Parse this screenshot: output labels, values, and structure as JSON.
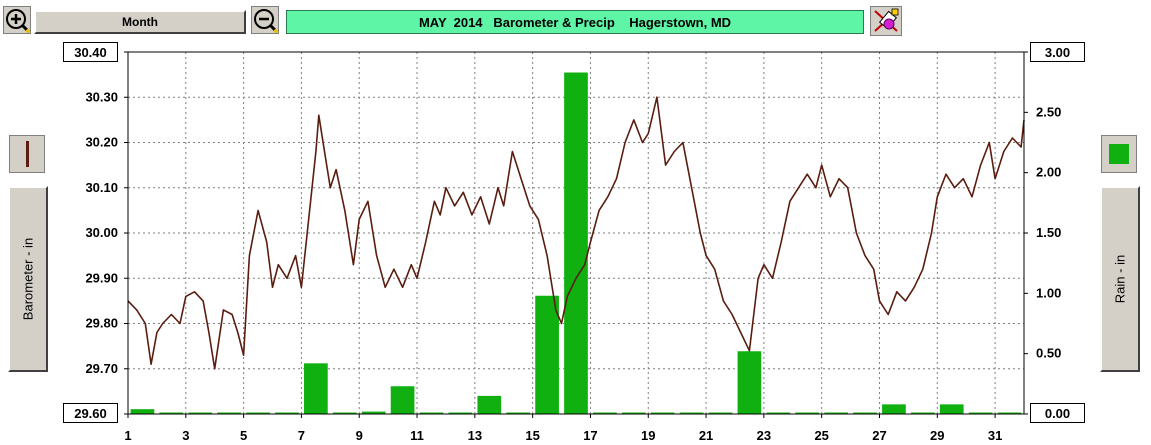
{
  "toolbar": {
    "period_label": "Month",
    "title": "MAY  2014   Barometer & Precip    Hagerstown, MD"
  },
  "icons": {
    "zoom_in": "zoom-in-icon",
    "zoom_out": "zoom-out-icon",
    "tools": "tools-icon"
  },
  "axes": {
    "left_label": "Barometer - in",
    "right_label": "Rain - in",
    "left_top": "30.40",
    "left_bottom": "29.60",
    "right_top": "3.00",
    "right_bottom": "0.00"
  },
  "colors": {
    "barometer_line": "#5a1d10",
    "rain_bars": "#10b010",
    "grid": "#808080"
  },
  "chart_data": {
    "type": "line",
    "title": "MAY  2014   Barometer & Precip    Hagerstown, MD",
    "xlabel": "",
    "xlim": [
      1,
      32
    ],
    "x_ticks": [
      "1",
      "3",
      "5",
      "7",
      "9",
      "11",
      "13",
      "15",
      "17",
      "19",
      "21",
      "23",
      "25",
      "27",
      "29",
      "31"
    ],
    "left_axis": {
      "label": "Barometer - in",
      "ylim": [
        29.6,
        30.4
      ],
      "ticks": [
        "30.40",
        "30.30",
        "30.20",
        "30.10",
        "30.00",
        "29.90",
        "29.80",
        "29.70",
        "29.60"
      ]
    },
    "right_axis": {
      "label": "Rain - in",
      "ylim": [
        0,
        3.0
      ],
      "ticks": [
        "3.00",
        "2.50",
        "2.00",
        "1.50",
        "1.00",
        "0.50",
        "0.00"
      ]
    },
    "grid": true,
    "series": [
      {
        "name": "Barometer - in",
        "kind": "line",
        "x": [
          1.0,
          1.3,
          1.6,
          1.8,
          2.0,
          2.2,
          2.5,
          2.8,
          3.0,
          3.3,
          3.6,
          3.8,
          4.0,
          4.3,
          4.6,
          4.8,
          5.0,
          5.2,
          5.5,
          5.8,
          6.0,
          6.2,
          6.5,
          6.8,
          7.0,
          7.2,
          7.5,
          7.6,
          7.8,
          8.0,
          8.2,
          8.5,
          8.8,
          9.0,
          9.3,
          9.6,
          9.9,
          10.2,
          10.5,
          10.8,
          11.0,
          11.3,
          11.6,
          11.8,
          12.0,
          12.3,
          12.6,
          12.9,
          13.2,
          13.5,
          13.8,
          14.0,
          14.3,
          14.6,
          14.9,
          15.2,
          15.5,
          15.8,
          16.0,
          16.2,
          16.5,
          16.8,
          17.0,
          17.3,
          17.6,
          17.9,
          18.2,
          18.5,
          18.8,
          19.0,
          19.3,
          19.6,
          19.9,
          20.2,
          20.5,
          20.8,
          21.0,
          21.3,
          21.6,
          21.9,
          22.2,
          22.5,
          22.8,
          23.0,
          23.3,
          23.6,
          23.9,
          24.2,
          24.5,
          24.8,
          25.0,
          25.3,
          25.6,
          25.9,
          26.2,
          26.5,
          26.8,
          27.0,
          27.3,
          27.6,
          27.9,
          28.2,
          28.5,
          28.8,
          29.0,
          29.3,
          29.6,
          29.9,
          30.2,
          30.5,
          30.8,
          31.0,
          31.3,
          31.6,
          31.9,
          32.0
        ],
        "y": [
          29.85,
          29.83,
          29.8,
          29.71,
          29.78,
          29.8,
          29.82,
          29.8,
          29.86,
          29.87,
          29.85,
          29.78,
          29.7,
          29.83,
          29.82,
          29.78,
          29.73,
          29.95,
          30.05,
          29.98,
          29.88,
          29.93,
          29.9,
          29.95,
          29.88,
          30.0,
          30.18,
          30.26,
          30.18,
          30.1,
          30.14,
          30.05,
          29.93,
          30.03,
          30.07,
          29.95,
          29.88,
          29.92,
          29.88,
          29.93,
          29.9,
          29.98,
          30.07,
          30.04,
          30.1,
          30.06,
          30.09,
          30.04,
          30.08,
          30.02,
          30.1,
          30.06,
          30.18,
          30.12,
          30.06,
          30.03,
          29.95,
          29.83,
          29.8,
          29.86,
          29.9,
          29.93,
          29.98,
          30.05,
          30.08,
          30.12,
          30.2,
          30.25,
          30.2,
          30.22,
          30.3,
          30.15,
          30.18,
          30.2,
          30.1,
          30.0,
          29.95,
          29.92,
          29.85,
          29.82,
          29.78,
          29.74,
          29.9,
          29.93,
          29.9,
          29.98,
          30.07,
          30.1,
          30.13,
          30.1,
          30.15,
          30.08,
          30.12,
          30.1,
          30.0,
          29.95,
          29.92,
          29.85,
          29.82,
          29.87,
          29.85,
          29.88,
          29.92,
          30.0,
          30.08,
          30.13,
          30.1,
          30.12,
          30.08,
          30.15,
          30.2,
          30.12,
          30.18,
          30.21,
          30.19,
          30.25
        ]
      },
      {
        "name": "Rain - in",
        "kind": "bar",
        "x": [
          1.5,
          2.5,
          3.5,
          4.5,
          5.5,
          6.5,
          7.5,
          8.5,
          9.5,
          10.5,
          11.5,
          12.5,
          13.5,
          14.5,
          15.5,
          16.5,
          17.5,
          18.5,
          19.5,
          20.5,
          21.5,
          22.5,
          23.5,
          24.5,
          25.5,
          26.5,
          27.5,
          28.5,
          29.5,
          30.5,
          31.5
        ],
        "values": [
          0.04,
          0.01,
          0.01,
          0.01,
          0.01,
          0.01,
          0.42,
          0.01,
          0.02,
          0.23,
          0.01,
          0.01,
          0.15,
          0.01,
          0.98,
          2.83,
          0.01,
          0.01,
          0.01,
          0.01,
          0.01,
          0.52,
          0.01,
          0.01,
          0.01,
          0.01,
          0.08,
          0.01,
          0.08,
          0.01,
          0.01
        ]
      }
    ]
  }
}
